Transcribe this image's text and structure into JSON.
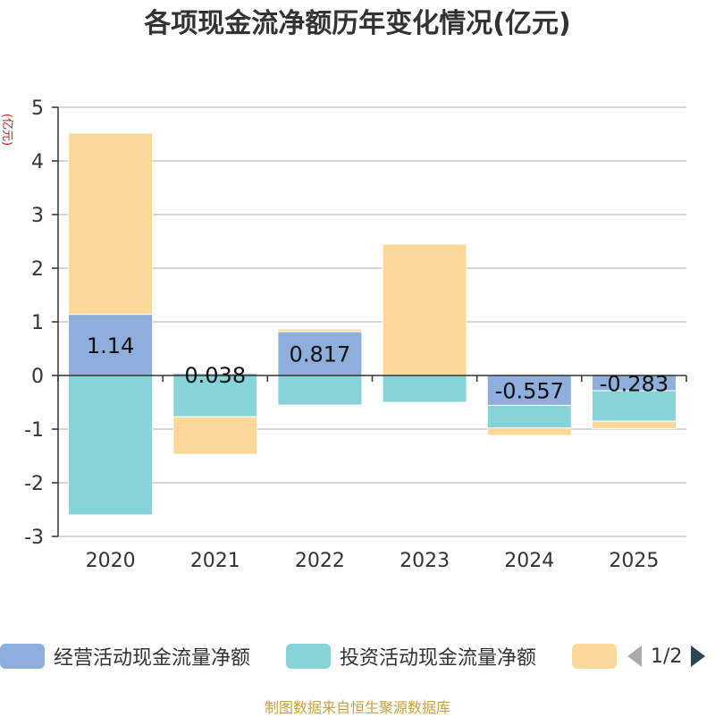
{
  "chart_data": {
    "type": "bar",
    "stacked": true,
    "title": "各项现金流净额历年变化情况(亿元)",
    "ylabel": "(亿元)",
    "xlabel": "",
    "ylim": [
      -3,
      5
    ],
    "yticks": [
      -3,
      -2,
      -1,
      0,
      1,
      2,
      3,
      4,
      5
    ],
    "categories": [
      "2020",
      "2021",
      "2022",
      "2023",
      "2024",
      "2025"
    ],
    "series": [
      {
        "name": "经营活动现金流量净额",
        "color": "#8eaedb",
        "values": [
          1.14,
          0.038,
          0.817,
          0.0,
          -0.557,
          -0.283
        ],
        "labels": [
          "1.14",
          "0.038",
          "0.817",
          "",
          "-0.557",
          "-0.283"
        ]
      },
      {
        "name": "投资活动现金流量净额",
        "color": "#86d4d8",
        "values": [
          -2.6,
          -0.77,
          -0.55,
          -0.5,
          -0.42,
          -0.57
        ]
      },
      {
        "name": "",
        "color": "#fdd898",
        "values": [
          3.38,
          -0.7,
          0.05,
          2.45,
          -0.14,
          -0.14
        ]
      }
    ],
    "legend_position": "bottom"
  },
  "legend": {
    "page": "1/2",
    "items": [
      {
        "label": "经营活动现金流量净额",
        "color": "#8eaedb"
      },
      {
        "label": "投资活动现金流量净额",
        "color": "#86d4d8"
      },
      {
        "label": "",
        "color": "#fdd898"
      }
    ]
  },
  "footer": {
    "source": "制图数据来自恒生聚源数据库"
  }
}
